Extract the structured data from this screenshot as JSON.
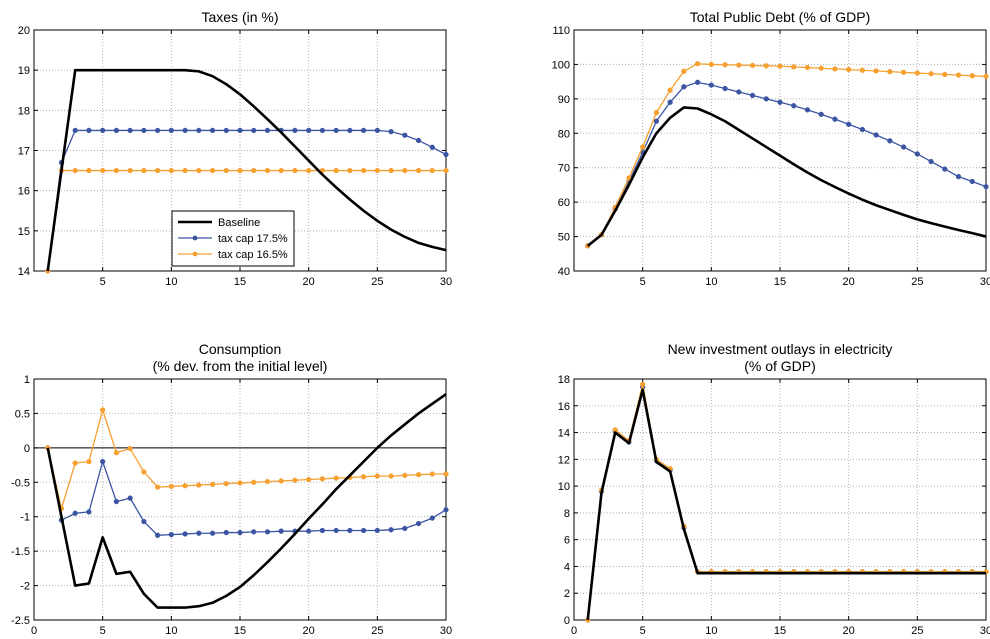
{
  "colors": {
    "baseline": "#000000",
    "cap175": "#3b55a3",
    "cap165": "#f5a030",
    "grid": "#b0b0b0"
  },
  "chart_data": [
    {
      "type": "line",
      "title": [
        "Taxes (in %)"
      ],
      "xlim": [
        0,
        30
      ],
      "ylim": [
        14,
        20
      ],
      "xticks": [
        5,
        10,
        15,
        20,
        25,
        30
      ],
      "yticks": [
        14,
        15,
        16,
        17,
        18,
        19,
        20
      ],
      "x": [
        1,
        2,
        3,
        4,
        5,
        6,
        7,
        8,
        9,
        10,
        11,
        12,
        13,
        14,
        15,
        16,
        17,
        18,
        19,
        20,
        21,
        22,
        23,
        24,
        25,
        26,
        27,
        28,
        29,
        30
      ],
      "legend": {
        "position": "inside-bottom-center",
        "entries": [
          "Baseline",
          "tax cap 17.5%",
          "tax cap 16.5%"
        ]
      },
      "series": [
        {
          "name": "Baseline",
          "color_key": "baseline",
          "markers": false,
          "values": [
            14,
            16.5,
            19,
            19,
            19,
            19,
            19,
            19,
            19,
            19,
            19,
            18.97,
            18.85,
            18.65,
            18.4,
            18.1,
            17.78,
            17.45,
            17.1,
            16.75,
            16.4,
            16.08,
            15.78,
            15.5,
            15.25,
            15.03,
            14.85,
            14.7,
            14.6,
            14.52
          ]
        },
        {
          "name": "tax cap 17.5%",
          "color_key": "cap175",
          "markers": true,
          "values": [
            14,
            16.7,
            17.5,
            17.5,
            17.5,
            17.5,
            17.5,
            17.5,
            17.5,
            17.5,
            17.5,
            17.5,
            17.5,
            17.5,
            17.5,
            17.5,
            17.5,
            17.5,
            17.5,
            17.5,
            17.5,
            17.5,
            17.5,
            17.5,
            17.5,
            17.47,
            17.38,
            17.25,
            17.08,
            16.9
          ]
        },
        {
          "name": "tax cap 16.5%",
          "color_key": "cap165",
          "markers": true,
          "values": [
            14,
            16.5,
            16.5,
            16.5,
            16.5,
            16.5,
            16.5,
            16.5,
            16.5,
            16.5,
            16.5,
            16.5,
            16.5,
            16.5,
            16.5,
            16.5,
            16.5,
            16.5,
            16.5,
            16.5,
            16.5,
            16.5,
            16.5,
            16.5,
            16.5,
            16.5,
            16.5,
            16.5,
            16.5,
            16.5
          ]
        }
      ]
    },
    {
      "type": "line",
      "title": [
        "Total Public Debt (% of GDP)"
      ],
      "xlim": [
        0,
        30
      ],
      "ylim": [
        40,
        110
      ],
      "xticks": [
        5,
        10,
        15,
        20,
        25,
        30
      ],
      "yticks": [
        40,
        50,
        60,
        70,
        80,
        90,
        100,
        110
      ],
      "x": [
        1,
        2,
        3,
        4,
        5,
        6,
        7,
        8,
        9,
        10,
        11,
        12,
        13,
        14,
        15,
        16,
        17,
        18,
        19,
        20,
        21,
        22,
        23,
        24,
        25,
        26,
        27,
        28,
        29,
        30
      ],
      "series": [
        {
          "name": "Baseline",
          "color_key": "baseline",
          "markers": false,
          "values": [
            47.3,
            50.5,
            57.5,
            65,
            73,
            80,
            84.5,
            87.5,
            87.2,
            85.5,
            83.5,
            81,
            78.5,
            76,
            73.5,
            71,
            68.6,
            66.4,
            64.4,
            62.5,
            60.7,
            59.1,
            57.7,
            56.3,
            55,
            53.9,
            52.9,
            51.9,
            51,
            50
          ]
        },
        {
          "name": "tax cap 17.5%",
          "color_key": "cap175",
          "markers": true,
          "values": [
            47.3,
            50.5,
            58,
            66,
            74.5,
            83.5,
            89,
            93.5,
            94.8,
            94,
            93,
            92,
            91,
            90,
            89,
            88,
            86.8,
            85.5,
            84.1,
            82.6,
            81.1,
            79.5,
            77.8,
            76,
            74,
            71.8,
            69.6,
            67.4,
            66,
            64.5
          ]
        },
        {
          "name": "tax cap 16.5%",
          "color_key": "cap165",
          "markers": true,
          "values": [
            47.3,
            50.5,
            58.5,
            67,
            76,
            86,
            92.5,
            98,
            100.2,
            100,
            99.9,
            99.8,
            99.7,
            99.6,
            99.5,
            99.3,
            99.1,
            98.9,
            98.7,
            98.5,
            98.3,
            98.1,
            97.9,
            97.7,
            97.5,
            97.3,
            97.1,
            96.9,
            96.7,
            96.5
          ]
        }
      ]
    },
    {
      "type": "line",
      "title": [
        "Consumption",
        "(% dev. from the initial level)"
      ],
      "xlim": [
        0,
        30
      ],
      "ylim": [
        -2.5,
        1
      ],
      "xticks": [
        0,
        5,
        10,
        15,
        20,
        25,
        30
      ],
      "yticks": [
        -2.5,
        -2,
        -1.5,
        -1,
        -0.5,
        0,
        0.5,
        1
      ],
      "ytick_labels": [
        "-2.5",
        "-2",
        "-1.5",
        "-1",
        "-0.5",
        "0",
        "0.5",
        "1"
      ],
      "hline": 0,
      "x": [
        1,
        2,
        3,
        4,
        5,
        6,
        7,
        8,
        9,
        10,
        11,
        12,
        13,
        14,
        15,
        16,
        17,
        18,
        19,
        20,
        21,
        22,
        23,
        24,
        25,
        26,
        27,
        28,
        29,
        30
      ],
      "series": [
        {
          "name": "Baseline",
          "color_key": "baseline",
          "markers": false,
          "values": [
            0,
            -1,
            -2,
            -1.97,
            -1.3,
            -1.83,
            -1.8,
            -2.12,
            -2.32,
            -2.32,
            -2.32,
            -2.3,
            -2.25,
            -2.15,
            -2.02,
            -1.85,
            -1.66,
            -1.46,
            -1.25,
            -1.03,
            -0.82,
            -0.6,
            -0.4,
            -0.2,
            0,
            0.18,
            0.34,
            0.5,
            0.64,
            0.78
          ]
        },
        {
          "name": "tax cap 17.5%",
          "color_key": "cap175",
          "markers": true,
          "values": [
            0,
            -1.05,
            -0.95,
            -0.93,
            -0.2,
            -0.78,
            -0.73,
            -1.07,
            -1.27,
            -1.26,
            -1.25,
            -1.24,
            -1.24,
            -1.23,
            -1.23,
            -1.22,
            -1.22,
            -1.21,
            -1.21,
            -1.21,
            -1.2,
            -1.2,
            -1.2,
            -1.2,
            -1.2,
            -1.19,
            -1.17,
            -1.1,
            -1.02,
            -0.9
          ]
        },
        {
          "name": "tax cap 16.5%",
          "color_key": "cap165",
          "markers": true,
          "values": [
            0,
            -0.88,
            -0.22,
            -0.2,
            0.55,
            -0.07,
            -0.01,
            -0.35,
            -0.57,
            -0.56,
            -0.55,
            -0.54,
            -0.53,
            -0.52,
            -0.51,
            -0.5,
            -0.49,
            -0.48,
            -0.47,
            -0.46,
            -0.45,
            -0.44,
            -0.43,
            -0.42,
            -0.41,
            -0.41,
            -0.4,
            -0.39,
            -0.38,
            -0.38
          ]
        }
      ]
    },
    {
      "type": "line",
      "title": [
        "New investment outlays in electricity",
        "(% of GDP)"
      ],
      "xlim": [
        0,
        30
      ],
      "ylim": [
        0,
        18
      ],
      "xticks": [
        0,
        5,
        10,
        15,
        20,
        25,
        30
      ],
      "yticks": [
        0,
        2,
        4,
        6,
        8,
        10,
        12,
        14,
        16,
        18
      ],
      "x": [
        1,
        2,
        3,
        4,
        5,
        6,
        7,
        8,
        9,
        10,
        11,
        12,
        13,
        14,
        15,
        16,
        17,
        18,
        19,
        20,
        21,
        22,
        23,
        24,
        25,
        26,
        27,
        28,
        29,
        30
      ],
      "series": [
        {
          "name": "Baseline",
          "color_key": "baseline",
          "markers": false,
          "values": [
            0,
            9.5,
            14,
            13.2,
            17.2,
            11.8,
            11.1,
            6.8,
            3.5,
            3.5,
            3.5,
            3.5,
            3.5,
            3.5,
            3.5,
            3.5,
            3.5,
            3.5,
            3.5,
            3.5,
            3.5,
            3.5,
            3.5,
            3.5,
            3.5,
            3.5,
            3.5,
            3.5,
            3.5,
            3.5
          ]
        },
        {
          "name": "tax cap 17.5%",
          "color_key": "cap175",
          "markers": true,
          "values": [
            0,
            9.6,
            14.1,
            13.3,
            17.4,
            11.9,
            11.2,
            6.9,
            3.6,
            3.6,
            3.6,
            3.6,
            3.6,
            3.6,
            3.6,
            3.6,
            3.6,
            3.6,
            3.6,
            3.6,
            3.6,
            3.6,
            3.6,
            3.6,
            3.6,
            3.6,
            3.6,
            3.6,
            3.6,
            3.6
          ]
        },
        {
          "name": "tax cap 16.5%",
          "color_key": "cap165",
          "markers": true,
          "values": [
            0,
            9.7,
            14.2,
            13.4,
            17.6,
            12,
            11.3,
            7,
            3.6,
            3.6,
            3.6,
            3.6,
            3.6,
            3.6,
            3.6,
            3.6,
            3.6,
            3.6,
            3.6,
            3.6,
            3.6,
            3.6,
            3.6,
            3.6,
            3.6,
            3.6,
            3.6,
            3.6,
            3.6,
            3.6
          ]
        }
      ]
    }
  ]
}
